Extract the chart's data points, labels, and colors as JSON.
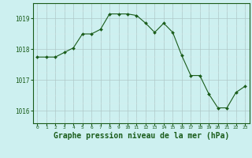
{
  "x": [
    0,
    1,
    2,
    3,
    4,
    5,
    6,
    7,
    8,
    9,
    10,
    11,
    12,
    13,
    14,
    15,
    16,
    17,
    18,
    19,
    20,
    21,
    22,
    23
  ],
  "y": [
    1017.75,
    1017.75,
    1017.75,
    1017.9,
    1018.05,
    1018.5,
    1018.5,
    1018.65,
    1019.15,
    1019.15,
    1019.15,
    1019.1,
    1018.85,
    1018.55,
    1018.85,
    1018.55,
    1017.8,
    1017.15,
    1017.15,
    1016.55,
    1016.1,
    1016.1,
    1016.6,
    1016.8
  ],
  "line_color": "#1a5c1a",
  "marker": "D",
  "marker_size": 2.0,
  "bg_color": "#cdf0f0",
  "grid_color_major": "#b0c8c8",
  "grid_color_minor": "#d8ecec",
  "xlabel": "Graphe pression niveau de la mer (hPa)",
  "xlabel_color": "#1a5c1a",
  "xlabel_fontsize": 7.0,
  "ylabel_ticks": [
    1016,
    1017,
    1018,
    1019
  ],
  "ylim": [
    1015.6,
    1019.5
  ],
  "xlim": [
    -0.5,
    23.5
  ],
  "xtick_labels": [
    "0",
    "1",
    "2",
    "3",
    "4",
    "5",
    "6",
    "7",
    "8",
    "9",
    "10",
    "11",
    "12",
    "13",
    "14",
    "15",
    "16",
    "17",
    "18",
    "19",
    "20",
    "21",
    "22",
    "23"
  ],
  "tick_color": "#1a5c1a",
  "axis_color": "#1a5c1a",
  "ytick_fontsize": 5.5,
  "xtick_fontsize": 4.5
}
